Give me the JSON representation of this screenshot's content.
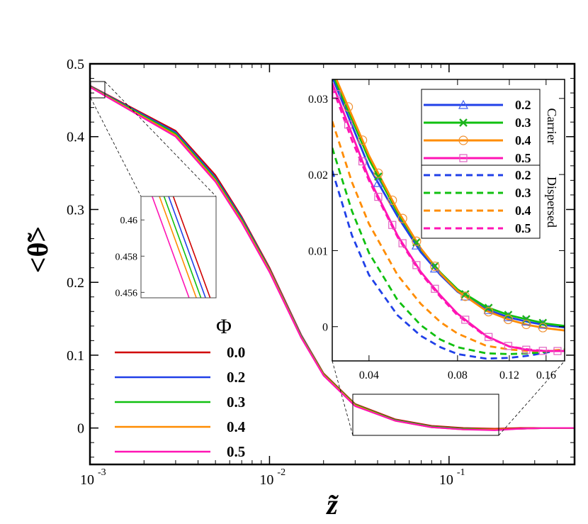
{
  "colors": {
    "phi0": "#d00000",
    "phi02": "#2040e8",
    "phi03": "#10c010",
    "phi04": "#ff8c00",
    "phi05": "#ff14b4",
    "marker05": "#e060c0",
    "marker04": "#f09030",
    "marker02": "#4060f0",
    "marker03": "#20b020"
  },
  "chart_data": [
    {
      "id": "main",
      "type": "line",
      "xscale": "log",
      "xlim": [
        0.001,
        0.5
      ],
      "ylim": [
        -0.05,
        0.5
      ],
      "xlabel": "z̃",
      "ylabel": "<θ̃>",
      "xtick_labels": [
        {
          "base": "10",
          "exp": "-3",
          "value": 0.001
        },
        {
          "base": "10",
          "exp": "-2",
          "value": 0.01
        },
        {
          "base": "10",
          "exp": "-1",
          "value": 0.1
        }
      ],
      "yticks": [
        0,
        0.1,
        0.2,
        0.3,
        0.4,
        0.5
      ],
      "ytick_labels": [
        "0",
        "0.1",
        "0.2",
        "0.3",
        "0.4",
        "0.5"
      ],
      "legend": {
        "title": "Φ",
        "position": "bottom-left"
      },
      "x": [
        0.001,
        0.003,
        0.005,
        0.007,
        0.01,
        0.015,
        0.02,
        0.03,
        0.05,
        0.08,
        0.12,
        0.18,
        0.25,
        0.35,
        0.5
      ],
      "series": [
        {
          "name": "0.0",
          "color_key": "phi0",
          "values": [
            0.47,
            0.408,
            0.347,
            0.29,
            0.22,
            0.128,
            0.075,
            0.033,
            0.012,
            0.003,
            0.0,
            -0.001,
            0.0,
            0.0,
            0.0
          ]
        },
        {
          "name": "0.2",
          "color_key": "phi02",
          "values": [
            0.4695,
            0.406,
            0.344,
            0.288,
            0.218,
            0.127,
            0.074,
            0.032,
            0.011,
            0.002,
            -0.001,
            -0.002,
            -0.001,
            0.0,
            0.0
          ]
        },
        {
          "name": "0.3",
          "color_key": "phi03",
          "values": [
            0.469,
            0.404,
            0.342,
            0.286,
            0.217,
            0.126,
            0.074,
            0.032,
            0.011,
            0.002,
            -0.001,
            -0.002,
            -0.001,
            0.0,
            0.0
          ]
        },
        {
          "name": "0.4",
          "color_key": "phi04",
          "values": [
            0.4685,
            0.402,
            0.34,
            0.284,
            0.216,
            0.125,
            0.073,
            0.031,
            0.01,
            0.001,
            -0.002,
            -0.002,
            -0.001,
            0.0,
            0.0
          ]
        },
        {
          "name": "0.5",
          "color_key": "phi05",
          "values": [
            0.468,
            0.4,
            0.338,
            0.282,
            0.214,
            0.124,
            0.072,
            0.03,
            0.01,
            0.001,
            -0.002,
            -0.003,
            -0.001,
            0.0,
            0.0
          ]
        }
      ],
      "inset_source_box": {
        "x": [
          0.03,
          0.19
        ],
        "y": [
          -0.01,
          0.05
        ]
      }
    },
    {
      "id": "zoom_inset",
      "type": "line",
      "xscale": "log",
      "xlim": [
        0.00098,
        0.00102
      ],
      "ylim": [
        0.4557,
        0.4613
      ],
      "ytick_labels": [
        "0.456",
        "0.458",
        "0.46"
      ],
      "yticks": [
        0.456,
        0.458,
        0.46
      ],
      "x": [
        0.00098,
        0.00102
      ],
      "series": [
        {
          "name": "0.0",
          "color_key": "phi0",
          "values": [
            0.4662,
            0.4548
          ]
        },
        {
          "name": "0.2",
          "color_key": "phi02",
          "values": [
            0.4655,
            0.4541
          ]
        },
        {
          "name": "0.3",
          "color_key": "phi03",
          "values": [
            0.4648,
            0.4534
          ]
        },
        {
          "name": "0.4",
          "color_key": "phi04",
          "values": [
            0.4641,
            0.4527
          ]
        },
        {
          "name": "0.5",
          "color_key": "phi05",
          "values": [
            0.463,
            0.4516
          ]
        }
      ]
    },
    {
      "id": "right_inset",
      "type": "line",
      "xscale": "log",
      "xlim": [
        0.03,
        0.185
      ],
      "ylim": [
        -0.0045,
        0.0325
      ],
      "xtick_labels": [
        "0.04",
        "0.08",
        "0.12",
        "0.16"
      ],
      "xticks": [
        0.04,
        0.08,
        0.12,
        0.16
      ],
      "ytick_labels": [
        "0",
        "0.01",
        "0.02",
        "0.03"
      ],
      "yticks": [
        0,
        0.01,
        0.02,
        0.03
      ],
      "legend": {
        "group_labels": [
          "Carrier",
          "Dispersed"
        ],
        "position": "top-right"
      },
      "carrier_series": [
        {
          "name": "0.2",
          "color_key": "phi02",
          "marker": "triangle",
          "marker_color_key": "marker02",
          "x": [
            0.03,
            0.04,
            0.05,
            0.06,
            0.07,
            0.08,
            0.1,
            0.12,
            0.14,
            0.16,
            0.185
          ],
          "values": [
            0.0328,
            0.021,
            0.0145,
            0.0098,
            0.0068,
            0.0046,
            0.0023,
            0.0012,
            0.0006,
            0.0002,
            -0.0001
          ],
          "marker_x": [
            0.043,
            0.058,
            0.067,
            0.085,
            0.102,
            0.119,
            0.137,
            0.156
          ]
        },
        {
          "name": "0.3",
          "color_key": "phi03",
          "marker": "x",
          "marker_color_key": "marker03",
          "x": [
            0.03,
            0.04,
            0.05,
            0.06,
            0.07,
            0.08,
            0.1,
            0.12,
            0.14,
            0.16,
            0.185
          ],
          "values": [
            0.0333,
            0.022,
            0.015,
            0.0102,
            0.0071,
            0.0049,
            0.0026,
            0.0015,
            0.0009,
            0.0004,
            0.0001
          ],
          "marker_x": [
            0.043,
            0.058,
            0.067,
            0.085,
            0.102,
            0.119,
            0.137,
            0.156
          ]
        },
        {
          "name": "0.4",
          "color_key": "phi04",
          "marker": "circle",
          "marker_color_key": "marker04",
          "x": [
            0.03,
            0.04,
            0.05,
            0.06,
            0.07,
            0.08,
            0.1,
            0.12,
            0.14,
            0.16,
            0.185
          ],
          "values": [
            0.0338,
            0.0225,
            0.0153,
            0.0103,
            0.007,
            0.0047,
            0.0021,
            0.0009,
            0.0002,
            -0.0002,
            -0.0005
          ],
          "marker_x": [
            0.034,
            0.038,
            0.043,
            0.048,
            0.052,
            0.058,
            0.067,
            0.085,
            0.102,
            0.119,
            0.137,
            0.156
          ]
        },
        {
          "name": "0.5",
          "color_key": "phi05",
          "marker": "square",
          "marker_color_key": "marker05",
          "x": [
            0.03,
            0.04,
            0.05,
            0.06,
            0.07,
            0.08,
            0.1,
            0.12,
            0.14,
            0.16,
            0.185
          ],
          "values": [
            0.032,
            0.0195,
            0.012,
            0.0072,
            0.0041,
            0.0017,
            -0.0012,
            -0.0026,
            -0.0031,
            -0.0032,
            -0.0032
          ],
          "marker_x": [
            0.031,
            0.034,
            0.038,
            0.043,
            0.048,
            0.052,
            0.058,
            0.067,
            0.085,
            0.102,
            0.119,
            0.137,
            0.156,
            0.175
          ]
        }
      ],
      "dispersed_series": [
        {
          "name": "0.2",
          "color_key": "phi02",
          "x": [
            0.03,
            0.035,
            0.04,
            0.05,
            0.06,
            0.07,
            0.08,
            0.1,
            0.12,
            0.14,
            0.16,
            0.185
          ],
          "values": [
            0.0205,
            0.012,
            0.0068,
            0.0015,
            -0.0012,
            -0.0027,
            -0.0036,
            -0.0042,
            -0.0041,
            -0.0038,
            -0.0034,
            -0.003
          ]
        },
        {
          "name": "0.3",
          "color_key": "phi03",
          "x": [
            0.03,
            0.035,
            0.04,
            0.05,
            0.06,
            0.07,
            0.08,
            0.1,
            0.12,
            0.14,
            0.16,
            0.185
          ],
          "values": [
            0.0235,
            0.0152,
            0.0097,
            0.0035,
            0.0002,
            -0.0017,
            -0.0027,
            -0.0035,
            -0.0036,
            -0.0035,
            -0.0033,
            -0.003
          ]
        },
        {
          "name": "0.4",
          "color_key": "phi04",
          "x": [
            0.03,
            0.035,
            0.04,
            0.05,
            0.06,
            0.07,
            0.08,
            0.1,
            0.12,
            0.14,
            0.16,
            0.185
          ],
          "values": [
            0.027,
            0.019,
            0.0135,
            0.0068,
            0.003,
            0.0006,
            -0.0009,
            -0.0025,
            -0.003,
            -0.0032,
            -0.0032,
            -0.003
          ]
        },
        {
          "name": "0.5",
          "color_key": "phi05",
          "x": [
            0.03,
            0.035,
            0.04,
            0.05,
            0.06,
            0.07,
            0.08,
            0.1,
            0.12,
            0.14,
            0.16,
            0.185
          ],
          "values": [
            0.0315,
            0.0245,
            0.0192,
            0.0118,
            0.007,
            0.0039,
            0.0015,
            -0.0013,
            -0.0026,
            -0.003,
            -0.0032,
            -0.0032
          ]
        }
      ]
    }
  ]
}
